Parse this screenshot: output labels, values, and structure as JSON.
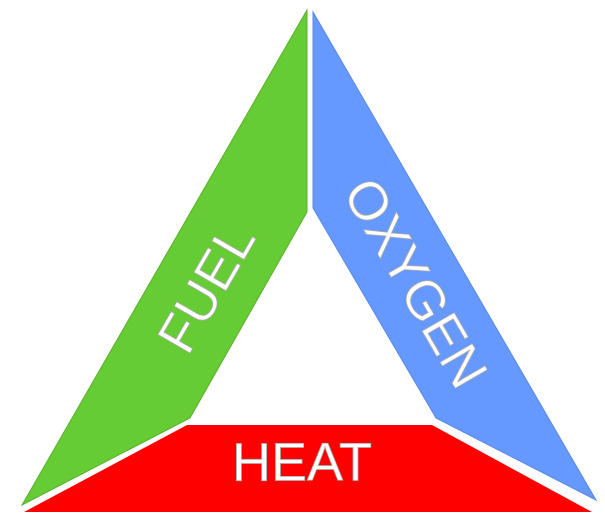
{
  "sides": [
    {
      "label": "FUEL"
    },
    {
      "label": "OXYGEN"
    },
    {
      "label": "HEAT"
    }
  ]
}
